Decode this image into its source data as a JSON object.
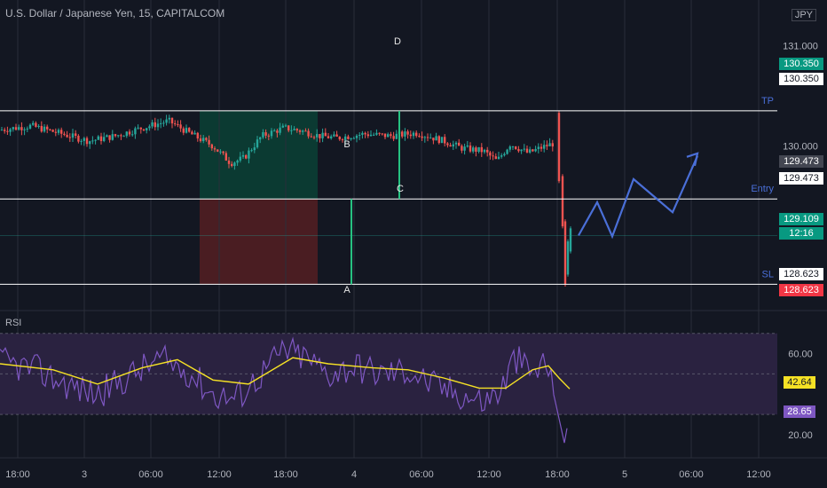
{
  "header": {
    "title": "U.S. Dollar / Japanese Yen, 15, CAPITALCOM",
    "currency": "JPY"
  },
  "colors": {
    "background": "#131722",
    "up": "#26a69a",
    "down": "#ef5350",
    "grid": "#2a2e39",
    "level_line": "#ffffff",
    "projection": "#4a6fd8",
    "rsi_line": "#7e57c2",
    "rsi_ma": "#f5e125",
    "rsi_band": "#2a2240",
    "tp_green": "#0b3a32",
    "sl_red": "#4a1d22"
  },
  "chart_data": {
    "type": "candlestick",
    "price_axis": {
      "ticks": [
        "131.000",
        "130.000"
      ],
      "range": [
        128.45,
        131.1
      ]
    },
    "time_axis": {
      "ticks": [
        "18:00",
        "3",
        "06:00",
        "12:00",
        "18:00",
        "4",
        "06:00",
        "12:00",
        "18:00",
        "5",
        "06:00",
        "12:00"
      ]
    },
    "levels": [
      {
        "name": "TP",
        "value": 130.35,
        "label": "130.350",
        "axis_label": "130.350"
      },
      {
        "name": "Entry",
        "value": 129.473,
        "label": "129.473",
        "axis_label": "129.473"
      },
      {
        "name": "SL",
        "value": 128.623,
        "label": "128.623",
        "axis_label": "128.623"
      }
    ],
    "current_price": {
      "value": 129.109,
      "label": "129.109",
      "countdown": "12:16"
    },
    "annotations": [
      "A",
      "B",
      "C",
      "D"
    ],
    "projection_path": [
      [
        129.109,
        0
      ],
      [
        129.44,
        1
      ],
      [
        129.1,
        2
      ],
      [
        129.67,
        3
      ],
      [
        129.34,
        4
      ],
      [
        129.9,
        5
      ]
    ],
    "rsi": {
      "label": "RSI",
      "ticks": [
        "60.00",
        "20.00"
      ],
      "range": [
        13,
        76
      ],
      "band": [
        30,
        70
      ],
      "value_ma": "42.64",
      "value_rsi": "28.65",
      "last_rsi": 28.65,
      "last_ma": 42.64
    }
  }
}
